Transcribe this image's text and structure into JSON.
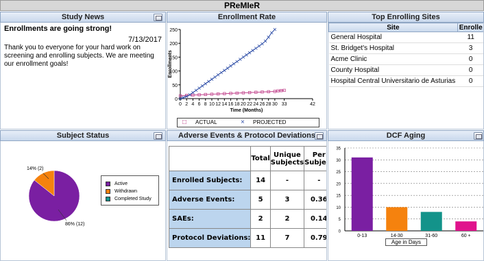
{
  "app_title": "PReMIeR",
  "study_news": {
    "title": "Study News",
    "headline": "Enrollments are going strong!",
    "date": "7/13/2017",
    "body": "Thank you to everyone for your hard work on screening and enrolling subjects.  We are meeting our enrollment goals!"
  },
  "enrollment_rate": {
    "title": "Enrollment Rate",
    "legend_actual": "ACTUAL",
    "legend_projected": "PROJECTED",
    "actual_symbol": "□",
    "projected_symbol": "×"
  },
  "top_sites": {
    "title": "Top Enrolling Sites",
    "col_site": "Site",
    "col_enrolled": "Enrolle",
    "rows": [
      {
        "site": "General Hospital",
        "enrolled": "11"
      },
      {
        "site": "St. Bridget's Hospital",
        "enrolled": "3"
      },
      {
        "site": "Acme Clinic",
        "enrolled": "0"
      },
      {
        "site": "County Hospital",
        "enrolled": "0"
      },
      {
        "site": "Hospital Central Universitario de Asturias",
        "enrolled": "0"
      }
    ]
  },
  "subject_status": {
    "title": "Subject Status",
    "label_large": "86% (12)",
    "label_small": "14% (2)",
    "legend": [
      {
        "name": "Active",
        "color": "#7a1fa2"
      },
      {
        "name": "Withdrawn",
        "color": "#f5820e"
      },
      {
        "name": "Completed Study",
        "color": "#13938a"
      }
    ]
  },
  "adverse_events": {
    "title": "Adverse Events & Protocol Deviations",
    "headers": [
      "Total",
      "Unique Subjects",
      "Per Subject"
    ],
    "rows": [
      {
        "label": "Enrolled Subjects:",
        "total": "14",
        "unique": "-",
        "per": "-"
      },
      {
        "label": "Adverse Events:",
        "total": "5",
        "unique": "3",
        "per": "0.36"
      },
      {
        "label": "SAEs:",
        "total": "2",
        "unique": "2",
        "per": "0.14"
      },
      {
        "label": "Protocol Deviations:",
        "total": "11",
        "unique": "7",
        "per": "0.79"
      }
    ]
  },
  "dcf_aging": {
    "title": "DCF Aging",
    "xlabel": "Age in Days"
  },
  "chart_data": [
    {
      "type": "line",
      "ylabel": "Enrollments",
      "xlabel": "Time (Months)",
      "xlim": [
        0,
        42
      ],
      "ylim": [
        0,
        250
      ],
      "x_ticks": [
        0,
        2,
        4,
        6,
        8,
        10,
        12,
        14,
        16,
        18,
        20,
        22,
        24,
        26,
        28,
        30,
        33,
        42
      ],
      "y_ticks": [
        0,
        50,
        100,
        150,
        200,
        250
      ],
      "series": [
        {
          "name": "ACTUAL",
          "color": "#c0408a",
          "x": [
            0,
            2,
            4,
            6,
            8,
            10,
            12,
            14,
            16,
            18,
            20,
            22,
            24,
            26,
            28,
            30,
            31,
            32,
            33
          ],
          "y": [
            10,
            12,
            13,
            14,
            15,
            16,
            17,
            18,
            19,
            20,
            21,
            22,
            23,
            24,
            25,
            26,
            28,
            29,
            30
          ]
        },
        {
          "name": "PROJECTED",
          "color": "#2f4fa8",
          "x": [
            0,
            1,
            2,
            3,
            4,
            5,
            6,
            7,
            8,
            9,
            10,
            11,
            12,
            13,
            14,
            15,
            16,
            17,
            18,
            19,
            20,
            21,
            22,
            23,
            24,
            25,
            26,
            27,
            28,
            29,
            30
          ],
          "y": [
            0,
            4,
            8,
            14,
            22,
            30,
            38,
            46,
            54,
            62,
            70,
            78,
            86,
            94,
            102,
            110,
            118,
            126,
            134,
            142,
            150,
            158,
            166,
            174,
            182,
            190,
            198,
            208,
            222,
            238,
            250
          ]
        }
      ]
    },
    {
      "type": "pie",
      "labels": [
        "Active",
        "Withdrawn",
        "Completed Study"
      ],
      "values": [
        12,
        2,
        0
      ],
      "colors": [
        "#7a1fa2",
        "#f5820e",
        "#13938a"
      ]
    },
    {
      "type": "bar",
      "categories": [
        "0-13",
        "14-30",
        "31-60",
        "60 +"
      ],
      "values": [
        31,
        10,
        8,
        4
      ],
      "colors": [
        "#7a1fa2",
        "#f5820e",
        "#13938a",
        "#e0138c"
      ],
      "ylim": [
        0,
        35
      ],
      "y_ticks": [
        0,
        5,
        10,
        15,
        20,
        25,
        30,
        35
      ],
      "xlabel": "Age in Days"
    }
  ]
}
